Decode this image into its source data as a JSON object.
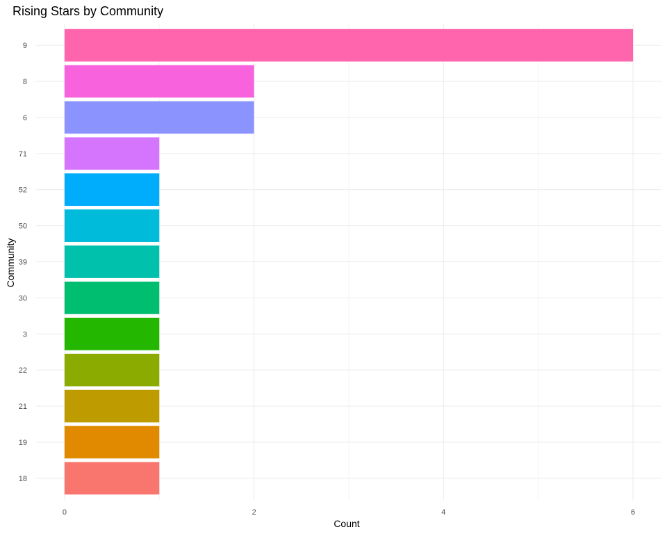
{
  "chart_data": {
    "type": "bar",
    "orientation": "horizontal",
    "title": "Rising Stars by Community",
    "xlabel": "Count",
    "ylabel": "Community",
    "categories": [
      "18",
      "19",
      "21",
      "22",
      "3",
      "30",
      "39",
      "50",
      "52",
      "71",
      "6",
      "8",
      "9"
    ],
    "values": [
      1,
      1,
      1,
      1,
      1,
      1,
      1,
      1,
      1,
      1,
      2,
      2,
      6
    ],
    "colors": [
      "#F8766D",
      "#E18A00",
      "#BE9C00",
      "#8CAB00",
      "#24B700",
      "#00BE70",
      "#00C1AB",
      "#00BBDA",
      "#00ACFC",
      "#D575FE",
      "#8B93FF",
      "#F962DD",
      "#FF65AC"
    ],
    "xlim": [
      -0.3,
      6.3
    ],
    "xticks": [
      0,
      2,
      4,
      6
    ],
    "grid": true,
    "legend": "none"
  }
}
